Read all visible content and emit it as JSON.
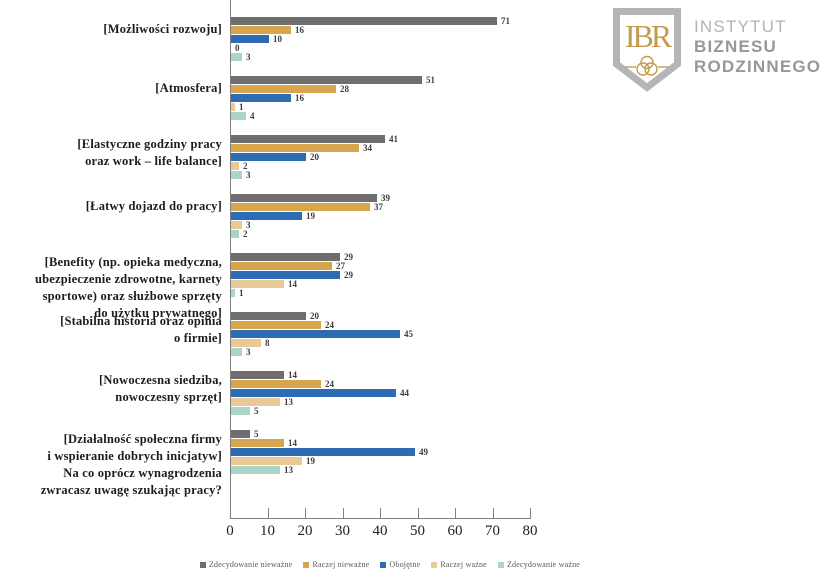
{
  "logo": {
    "monogram": "IBR",
    "org_lines": [
      "INSTYTUT",
      "BIZNESU",
      "RODZINNEGO"
    ],
    "gold": "#c49b4e",
    "shield_gray": "#b3b5b8"
  },
  "chart_data": {
    "type": "bar",
    "orientation": "horizontal",
    "question": "Na co oprócz wynagrodzenia zwracasz uwagę szukając pracy?",
    "categories": [
      "[Możliwości rozwoju]",
      "[Atmosfera]",
      "[Elastyczne godziny pracy oraz work – life balance]",
      "[Łatwy dojazd do pracy]",
      "[Benefity (np. opieka medyczna, ubezpieczenie zdrowotne, karnety sportowe) oraz służbowe sprzęty do użytku prywatnego]",
      "[Stabilna historia oraz opinia o firmie]",
      "[Nowoczesna siedziba, nowoczesny sprzęt]",
      "[Działalność społeczna firmy i wspieranie dobrych inicjatyw] Na co oprócz wynagrodzenia zwracasz uwagę szukając pracy?"
    ],
    "category_label_lines": [
      [
        "[Możliwości rozwoju]"
      ],
      [
        "[Atmosfera]"
      ],
      [
        "[Elastyczne godziny pracy",
        "oraz work – life balance]"
      ],
      [
        "[Łatwy dojazd do pracy]"
      ],
      [
        "[Benefity (np. opieka medyczna,",
        "ubezpieczenie zdrowotne, karnety",
        "sportowe) oraz służbowe sprzęty",
        "do użytku prywatnego]"
      ],
      [
        "[Stabilna historia oraz opinia",
        "o firmie]"
      ],
      [
        "[Nowoczesna siedziba,",
        "nowoczesny sprzęt]"
      ],
      [
        "[Działalność społeczna firmy",
        "i wspieranie dobrych inicjatyw]",
        "Na co oprócz wynagrodzenia",
        "zwracasz uwagę szukając pracy?"
      ]
    ],
    "series": [
      {
        "name": "Zdecydowanie nieważne",
        "color": "#6e6e6e",
        "values": [
          71,
          51,
          41,
          39,
          29,
          20,
          14,
          5
        ]
      },
      {
        "name": "Raczej nieważne",
        "color": "#d7a54f",
        "values": [
          16,
          28,
          34,
          37,
          27,
          24,
          24,
          14
        ]
      },
      {
        "name": "Obojętne",
        "color": "#2d6cb4",
        "values": [
          10,
          16,
          20,
          19,
          29,
          45,
          44,
          49
        ]
      },
      {
        "name": "Raczej ważne",
        "color": "#eac998",
        "values": [
          0,
          1,
          2,
          3,
          14,
          8,
          13,
          19
        ]
      },
      {
        "name": "Zdecydowanie ważne",
        "color": "#abd5c6",
        "values": [
          3,
          4,
          3,
          2,
          1,
          3,
          5,
          13
        ]
      }
    ],
    "x_ticks": [
      0,
      10,
      20,
      30,
      40,
      50,
      60,
      70,
      80
    ],
    "xlim": [
      0,
      80
    ],
    "grid": false,
    "data_labels": true,
    "legend_position": "bottom"
  }
}
